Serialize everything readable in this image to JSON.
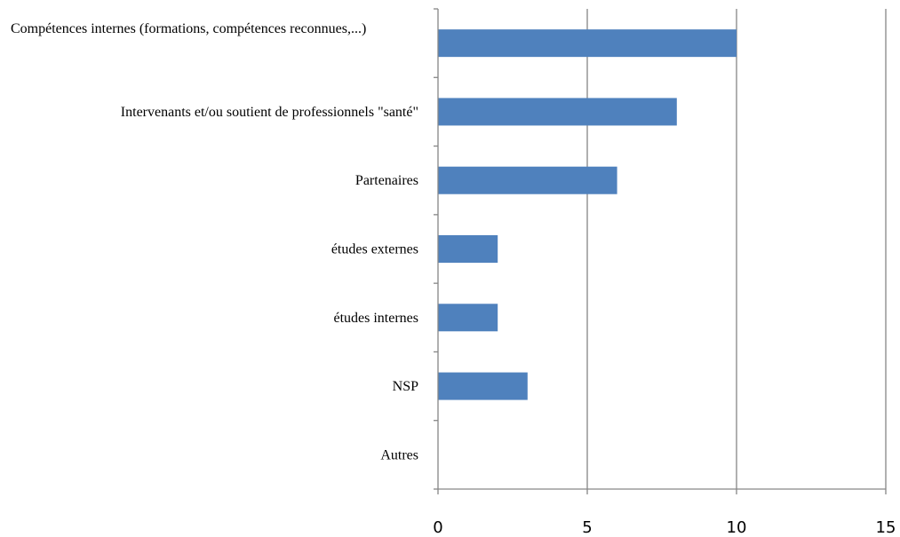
{
  "chart_data": {
    "type": "bar",
    "orientation": "horizontal",
    "title": "",
    "xlabel": "",
    "ylabel": "",
    "categories": [
      "Compétences internes (formations, compétences reconnues,...)",
      "Intervenants et/ou soutient de professionnels \"santé\"",
      "Partenaires",
      "études externes",
      "études internes",
      "NSP",
      "Autres"
    ],
    "values": [
      10,
      8,
      6,
      2,
      2,
      3,
      0
    ],
    "xlim": [
      0,
      15
    ],
    "xticks": [
      "0",
      "5",
      "10",
      "15"
    ],
    "grid": true,
    "legend": "none",
    "bar_color": "#4F81BD",
    "grid_color": "#868686"
  }
}
